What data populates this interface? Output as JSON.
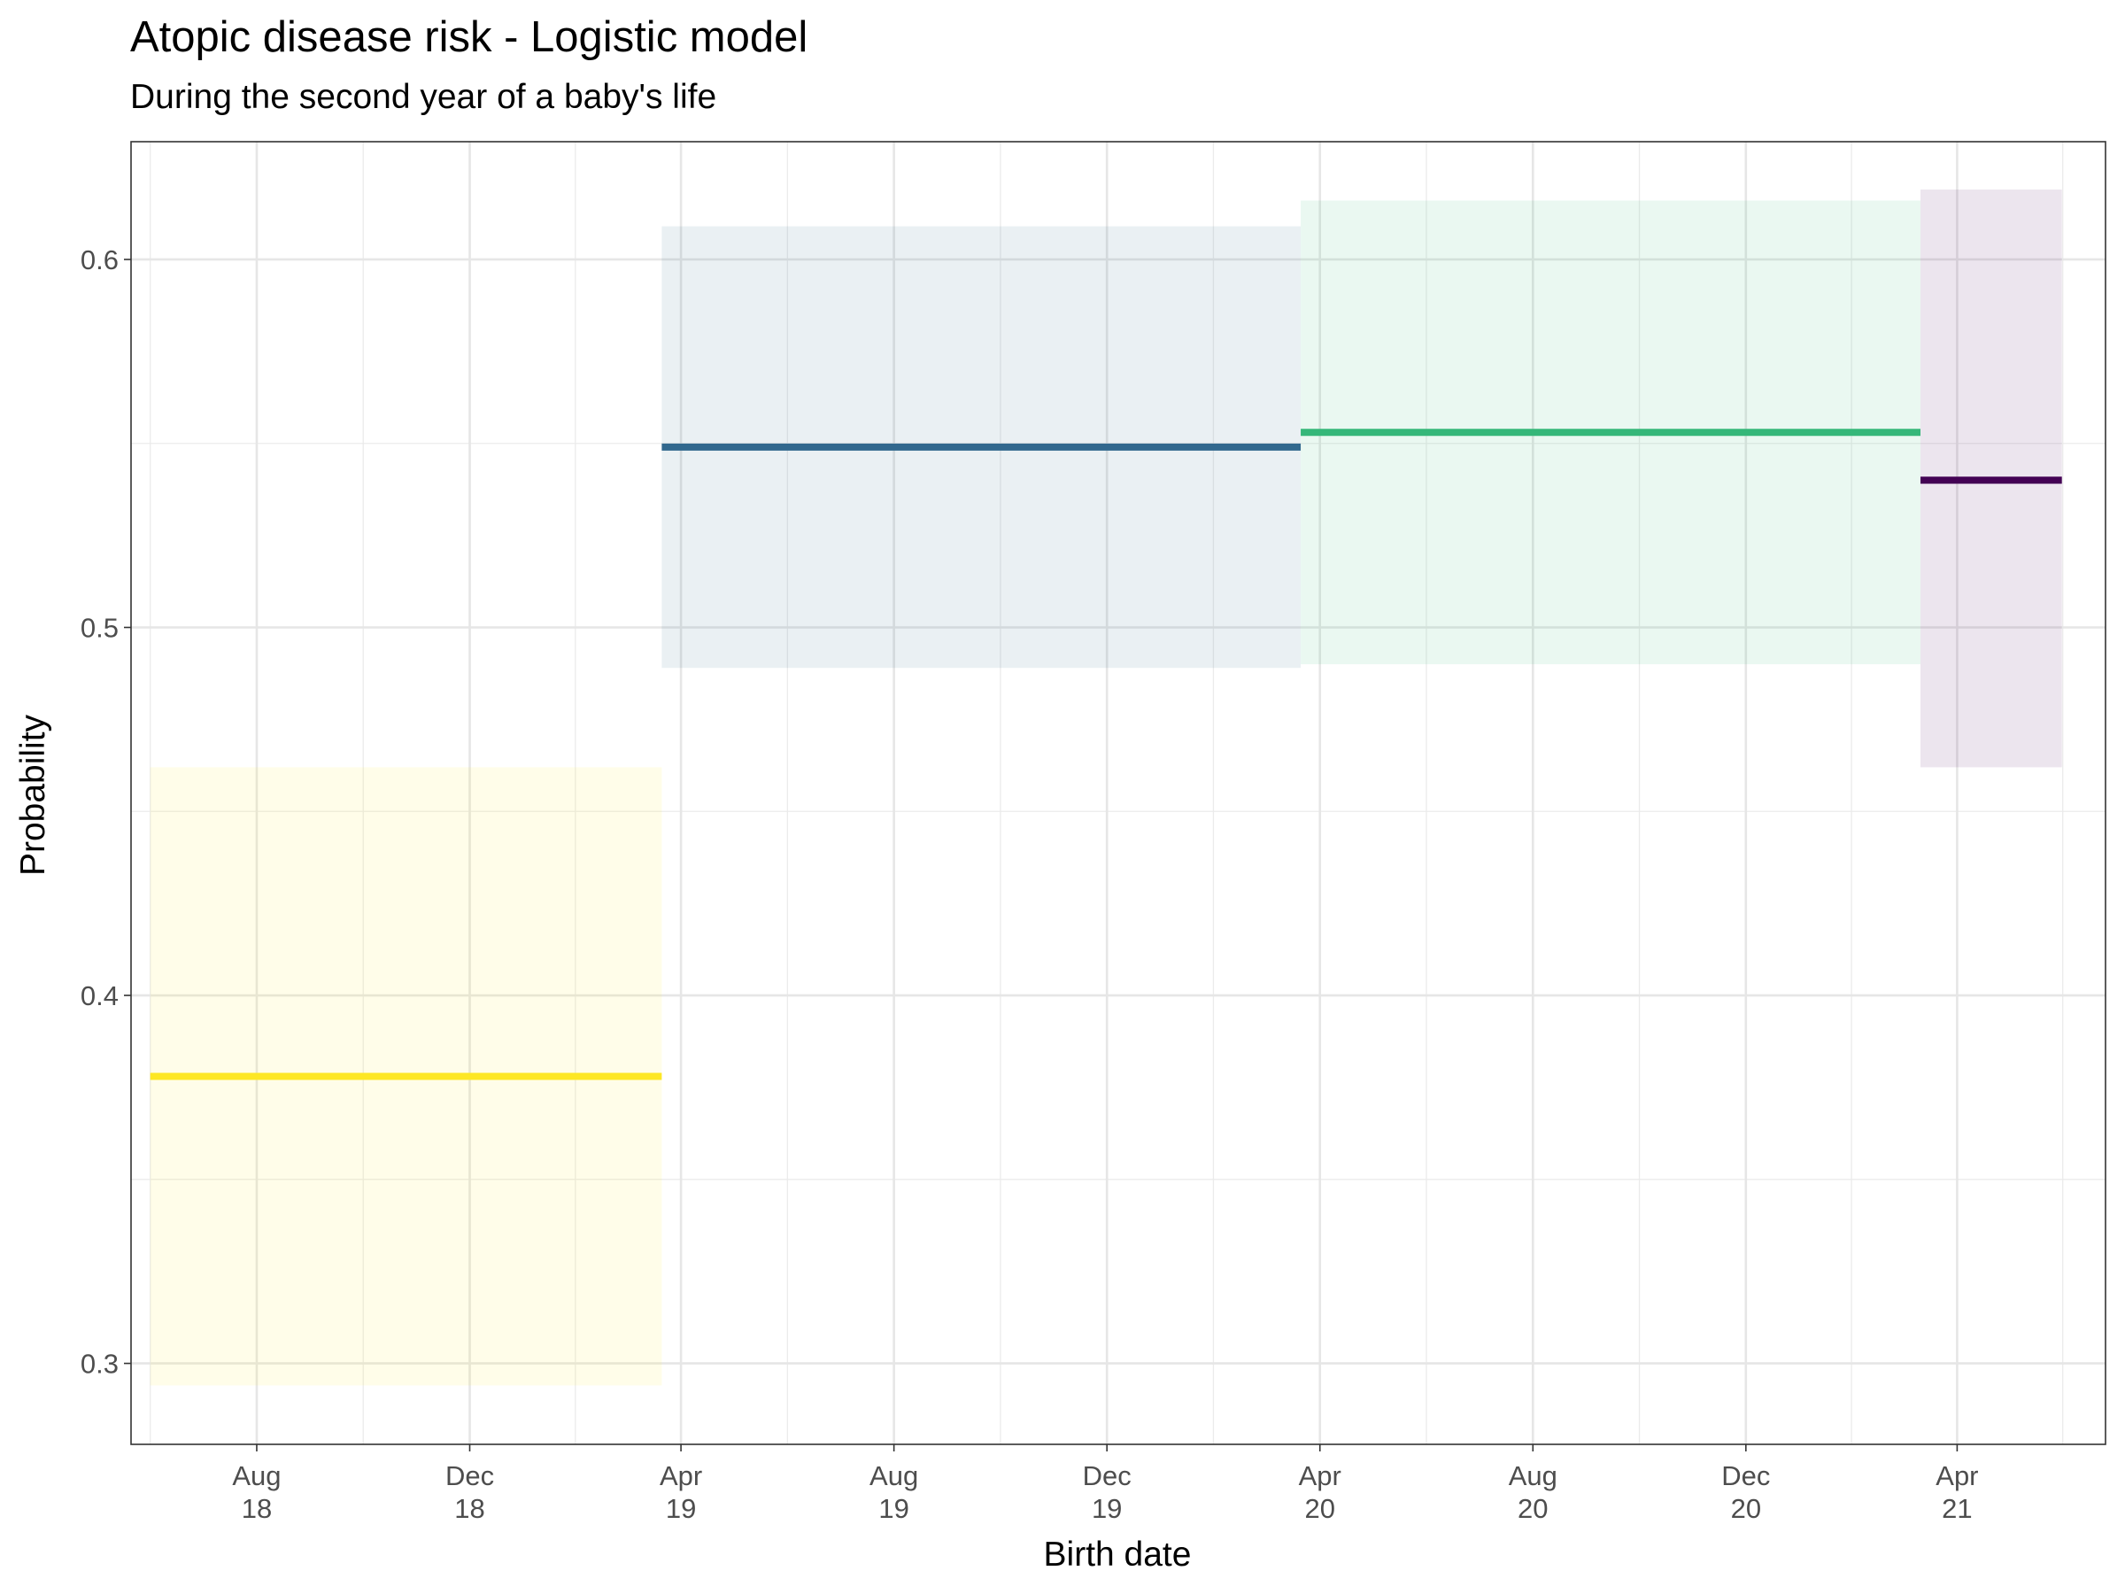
{
  "chart_data": {
    "type": "line",
    "title": "Atopic disease risk - Logistic model",
    "subtitle": "During the second year of a baby's life",
    "xlabel": "Birth date",
    "ylabel": "Probability",
    "x_scale": "date",
    "xlim": [
      "2018-05-21",
      "2021-06-25"
    ],
    "ylim": [
      0.278,
      0.632
    ],
    "grid": true,
    "legend": "none",
    "x_ticks": [
      {
        "date": "2018-08-01",
        "label": [
          "Aug",
          "18"
        ]
      },
      {
        "date": "2018-12-01",
        "label": [
          "Dec",
          "18"
        ]
      },
      {
        "date": "2019-04-01",
        "label": [
          "Apr",
          "19"
        ]
      },
      {
        "date": "2019-08-01",
        "label": [
          "Aug",
          "19"
        ]
      },
      {
        "date": "2019-12-01",
        "label": [
          "Dec",
          "19"
        ]
      },
      {
        "date": "2020-04-01",
        "label": [
          "Apr",
          "20"
        ]
      },
      {
        "date": "2020-08-01",
        "label": [
          "Aug",
          "20"
        ]
      },
      {
        "date": "2020-12-01",
        "label": [
          "Dec",
          "20"
        ]
      },
      {
        "date": "2021-04-01",
        "label": [
          "Apr",
          "21"
        ]
      }
    ],
    "y_ticks": [
      {
        "value": 0.3,
        "label": "0.3"
      },
      {
        "value": 0.4,
        "label": "0.4"
      },
      {
        "value": 0.5,
        "label": "0.5"
      },
      {
        "value": 0.6,
        "label": "0.6"
      }
    ],
    "series": [
      {
        "x_start": "2018-06-01",
        "x_end": "2019-03-21",
        "estimate": 0.378,
        "lower": 0.294,
        "upper": 0.462,
        "color": "#FDE725"
      },
      {
        "x_start": "2019-03-21",
        "x_end": "2020-03-21",
        "estimate": 0.549,
        "lower": 0.489,
        "upper": 0.609,
        "color": "#31688E"
      },
      {
        "x_start": "2020-03-21",
        "x_end": "2021-03-11",
        "estimate": 0.553,
        "lower": 0.49,
        "upper": 0.616,
        "color": "#35B779"
      },
      {
        "x_start": "2021-03-11",
        "x_end": "2021-05-31",
        "estimate": 0.54,
        "lower": 0.462,
        "upper": 0.619,
        "color": "#440154"
      }
    ]
  }
}
